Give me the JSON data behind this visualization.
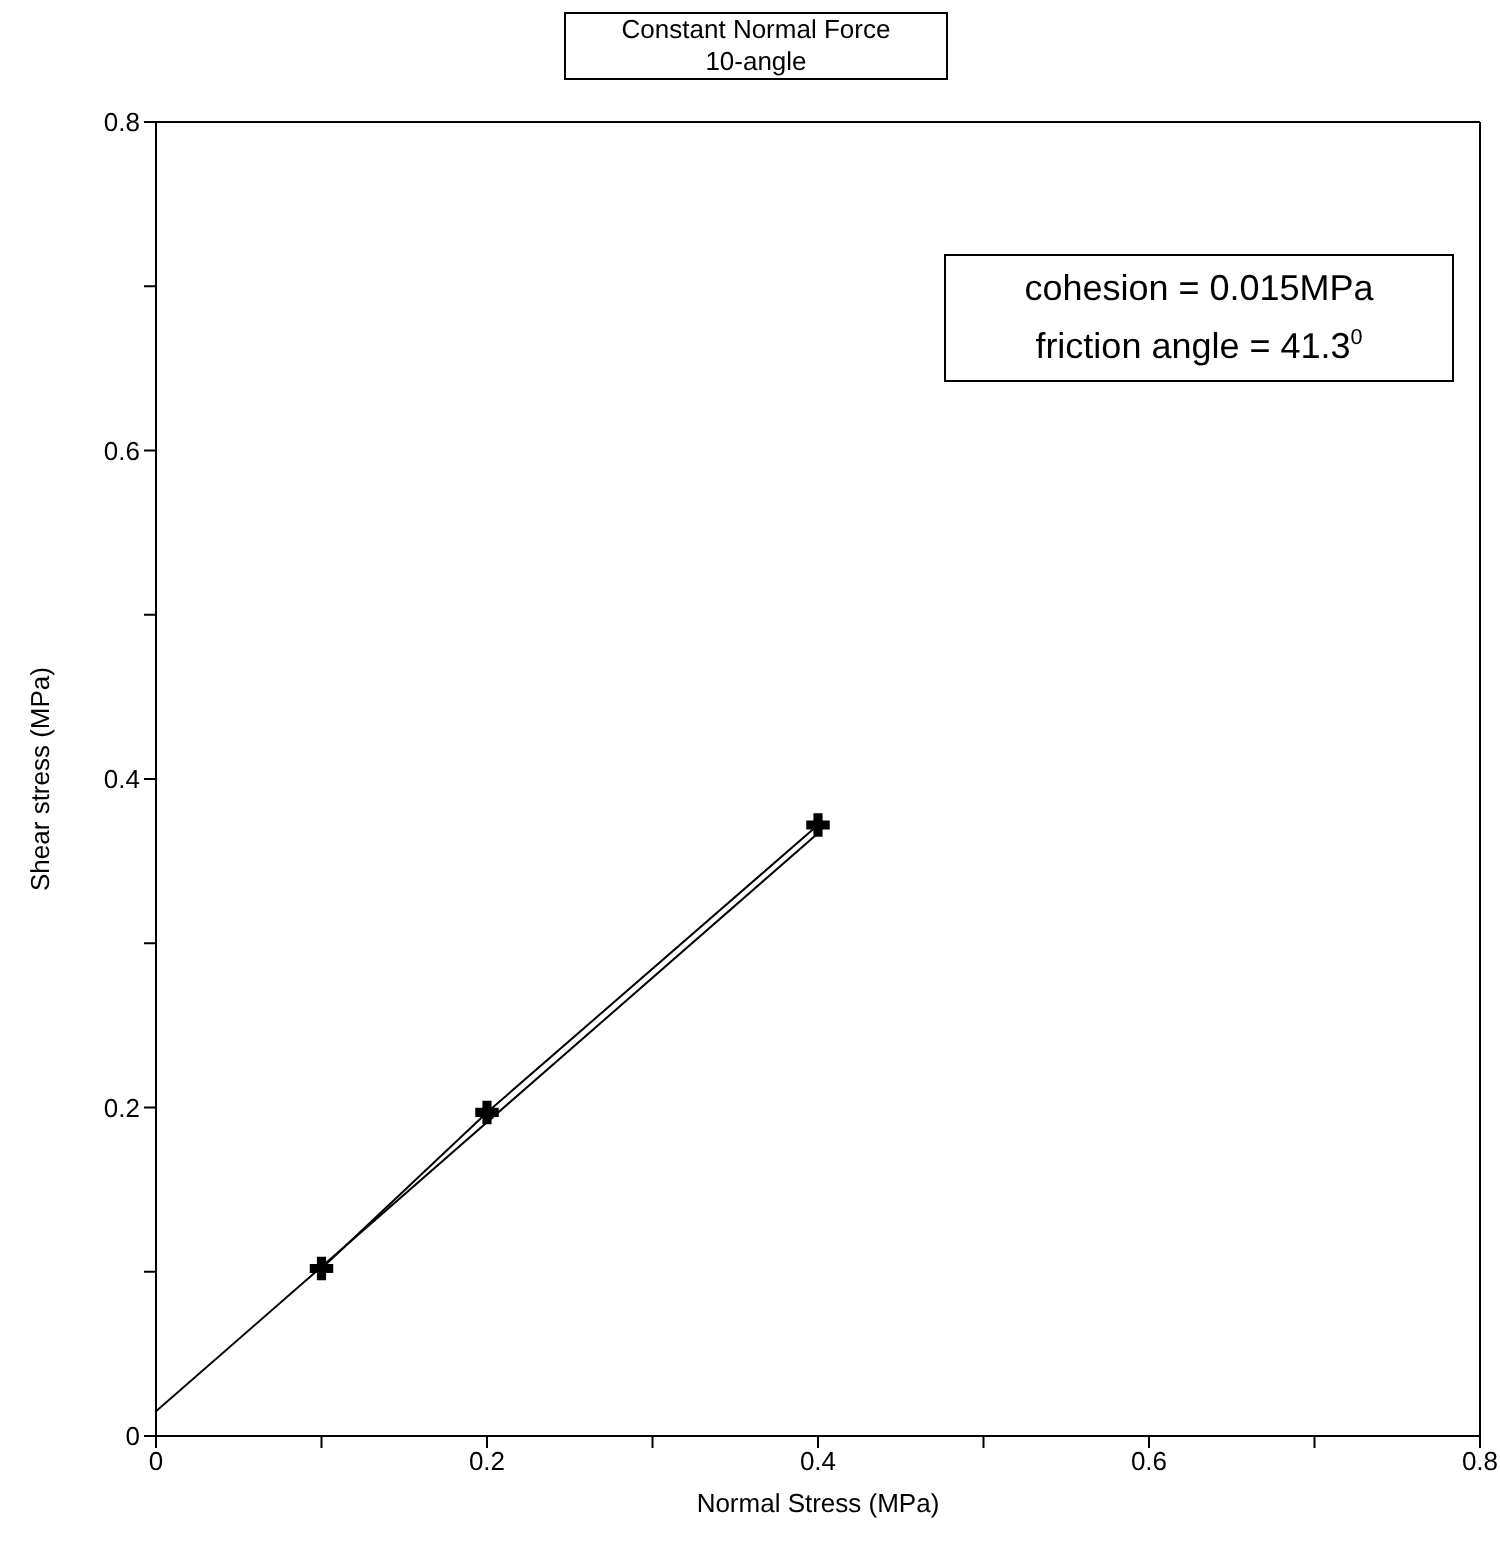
{
  "chart_data": {
    "type": "line",
    "title": "Constant Normal Force",
    "subtitle": "10-angle",
    "xlabel": "Normal Stress (MPa)",
    "ylabel": "Shear stress (MPa)",
    "annotations": [
      "cohesion = 0.015MPa",
      "friction angle = 41.3$^{0}$"
    ],
    "xlim": [
      0,
      0.8
    ],
    "ylim": [
      0,
      0.8
    ],
    "xticks": [
      0,
      {
        "value": 0.1,
        "label": null
      },
      0.2,
      {
        "value": 0.3,
        "label": null
      },
      0.4,
      {
        "value": 0.5,
        "label": null
      },
      0.6,
      {
        "value": 0.7,
        "label": null
      },
      0.8
    ],
    "yticks": [
      0,
      {
        "value": 0.1,
        "label": null
      },
      0.2,
      {
        "value": 0.3,
        "label": null
      },
      0.4,
      {
        "value": 0.5,
        "label": null
      },
      0.6,
      {
        "value": 0.7,
        "label": null
      },
      0.8
    ],
    "grid": false,
    "series": [
      {
        "color": "#000000",
        "marker": "cross",
        "x": [
          0.1,
          0.2,
          0.4
        ],
        "values": [
          0.102,
          0.197,
          0.372
        ]
      },
      {
        "color": "#000000",
        "marker": "none",
        "x": [
          0,
          0.4
        ],
        "values": [
          0.015,
          0.367
        ]
      }
    ]
  }
}
